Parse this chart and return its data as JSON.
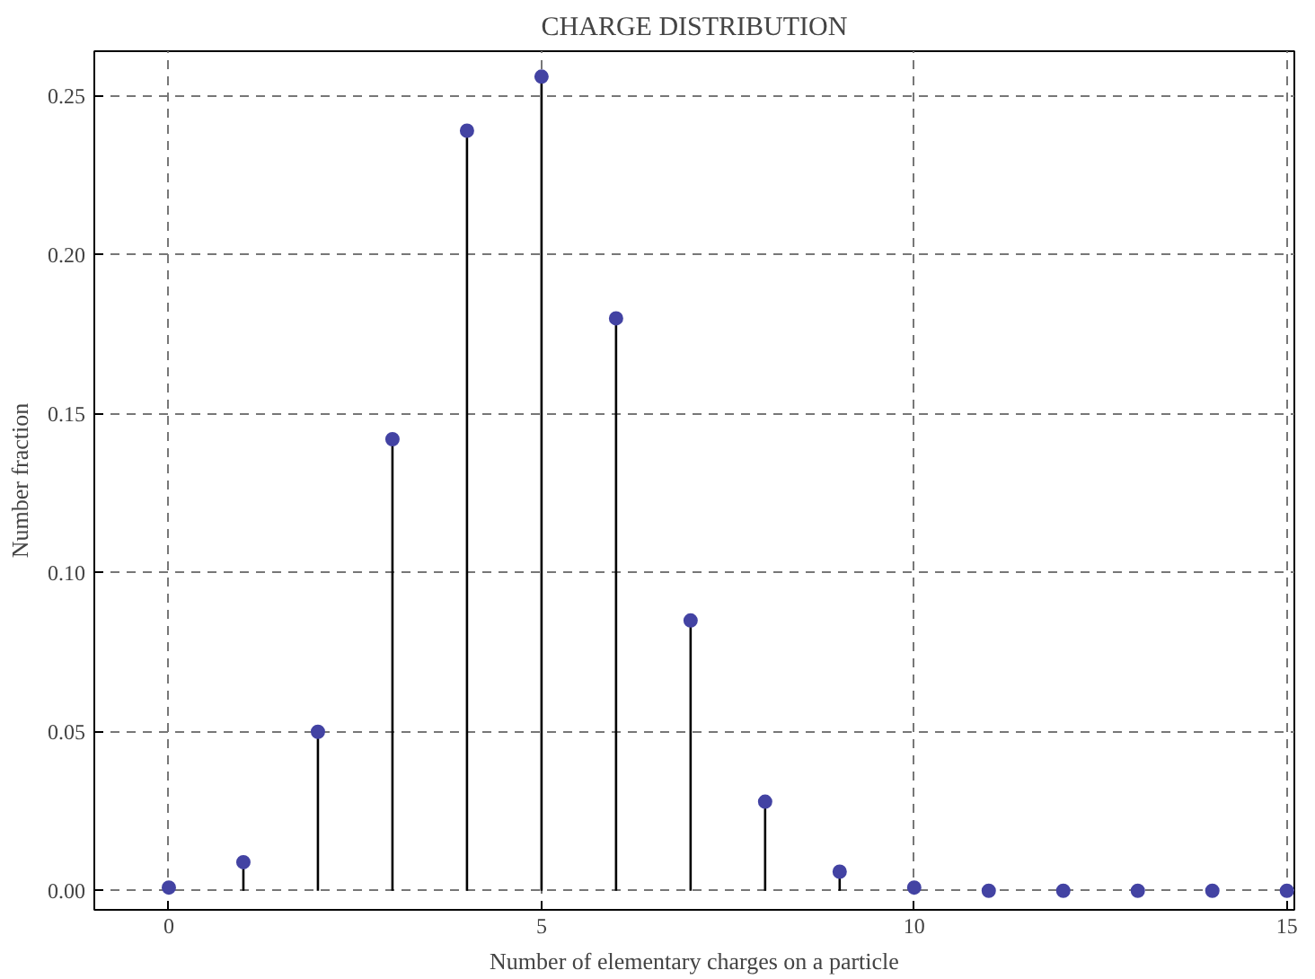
{
  "chart_data": {
    "type": "lollipop",
    "title": "CHARGE DISTRIBUTION",
    "xlabel": "Number of elementary charges on a particle",
    "ylabel": "Number fraction",
    "x": [
      0,
      1,
      2,
      3,
      4,
      5,
      6,
      7,
      8,
      9,
      10,
      11,
      12,
      13,
      14,
      15
    ],
    "series": [
      {
        "color": "#4343a3",
        "values": [
          0.001,
          0.009,
          0.05,
          0.142,
          0.239,
          0.256,
          0.18,
          0.085,
          0.028,
          0.006,
          0.001,
          0.0,
          0.0,
          0.0,
          0.0,
          0.0
        ]
      }
    ],
    "xlim": [
      -1,
      15.1
    ],
    "ylim": [
      -0.006,
      0.264
    ],
    "xticks": [
      0,
      5,
      10,
      15
    ],
    "yticks": [
      {
        "value": 0,
        "label": "0.00"
      },
      {
        "value": 0.05,
        "label": "0.05"
      },
      {
        "value": 0.1,
        "label": "0.10"
      },
      {
        "value": 0.15,
        "label": "0.15"
      },
      {
        "value": 0.2,
        "label": "0.20"
      },
      {
        "value": 0.25,
        "label": "0.25"
      }
    ],
    "grid": true,
    "marker": "circle"
  }
}
